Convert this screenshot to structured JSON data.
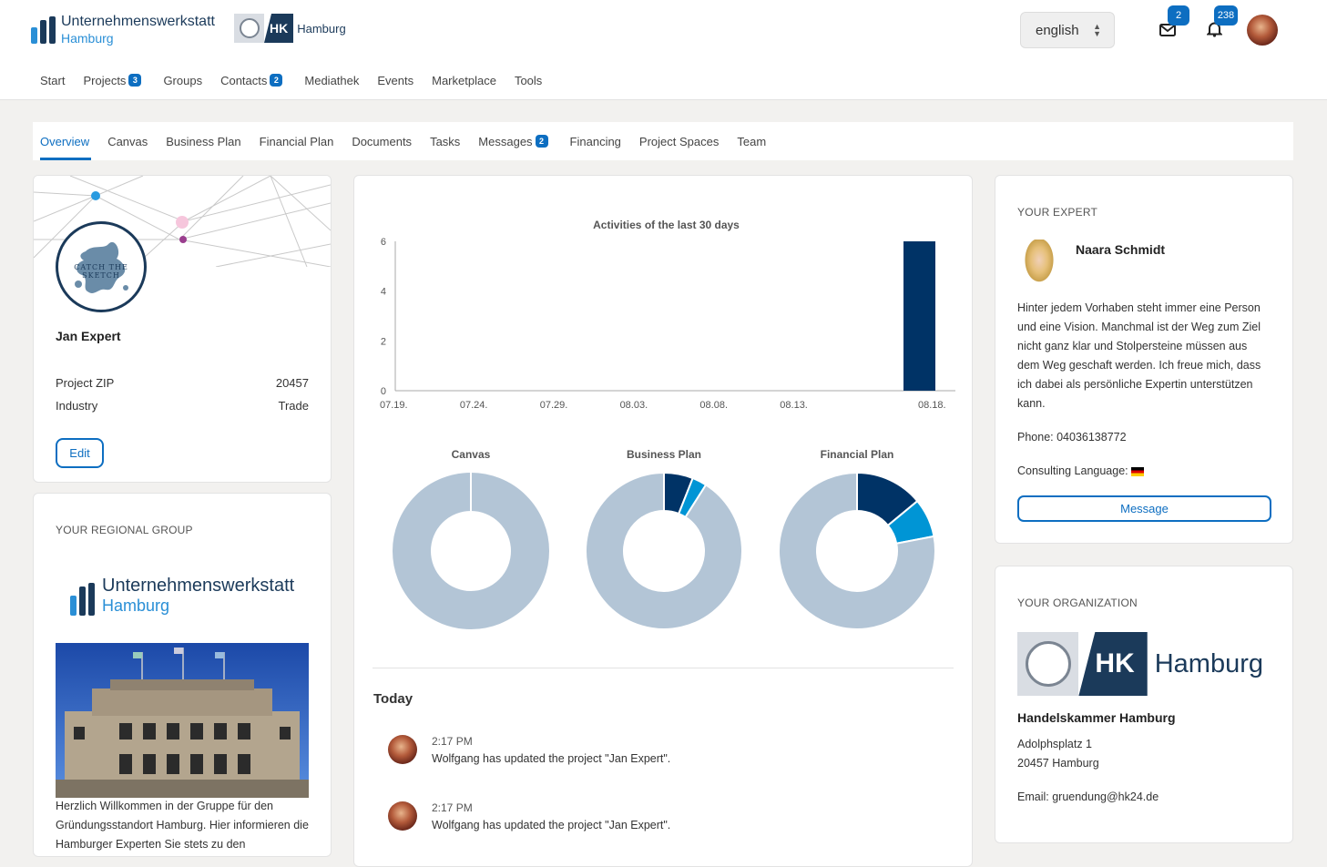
{
  "header": {
    "logo_line1": "Unternehmenswerkstatt",
    "logo_line2": "Hamburg",
    "hk_abbrev": "HK",
    "hk_word": "Hamburg",
    "language": "english",
    "mail_count": "2",
    "notification_count": "238"
  },
  "main_nav": [
    {
      "label": "Start",
      "count": ""
    },
    {
      "label": "Projects",
      "count": "3"
    },
    {
      "label": "Groups",
      "count": ""
    },
    {
      "label": "Contacts",
      "count": "2"
    },
    {
      "label": "Mediathek",
      "count": ""
    },
    {
      "label": "Events",
      "count": ""
    },
    {
      "label": "Marketplace",
      "count": ""
    },
    {
      "label": "Tools",
      "count": ""
    }
  ],
  "sub_nav": [
    {
      "label": "Overview",
      "count": "",
      "active": true
    },
    {
      "label": "Canvas",
      "count": ""
    },
    {
      "label": "Business Plan",
      "count": ""
    },
    {
      "label": "Financial Plan",
      "count": ""
    },
    {
      "label": "Documents",
      "count": ""
    },
    {
      "label": "Tasks",
      "count": ""
    },
    {
      "label": "Messages",
      "count": "2"
    },
    {
      "label": "Financing",
      "count": ""
    },
    {
      "label": "Project Spaces",
      "count": ""
    },
    {
      "label": "Team",
      "count": ""
    }
  ],
  "project": {
    "logo_text": "CATCH THE SKETCH",
    "name": "Jan Expert",
    "zip_label": "Project ZIP",
    "zip_value": "20457",
    "industry_label": "Industry",
    "industry_value": "Trade",
    "edit_label": "Edit"
  },
  "regional_group": {
    "title": "YOUR REGIONAL GROUP",
    "logo_line1": "Unternehmenswerkstatt",
    "logo_line2": "Hamburg",
    "text": "Herzlich Willkommen in der Gruppe für den Gründungsstandort Hamburg. Hier informieren die Hamburger Experten Sie stets zu den"
  },
  "chart_data": [
    {
      "type": "bar",
      "title": "Activities of the last 30 days",
      "categories": [
        "07.19.",
        "07.24.",
        "07.29.",
        "08.03.",
        "08.08.",
        "08.13.",
        "08.18."
      ],
      "values": [
        0,
        0,
        0,
        0,
        0,
        0,
        6
      ],
      "ylim": [
        0,
        6
      ],
      "yticks": [
        0,
        2,
        4,
        6
      ],
      "color": "#003366"
    },
    {
      "type": "pie",
      "title": "Canvas",
      "slices": [
        {
          "value": 0,
          "color": "#003366"
        },
        {
          "value": 0,
          "color": "#0095d5"
        },
        {
          "value": 100,
          "color": "#b3c5d6"
        }
      ]
    },
    {
      "type": "pie",
      "title": "Business Plan",
      "slices": [
        {
          "value": 6,
          "color": "#003366"
        },
        {
          "value": 3,
          "color": "#0095d5"
        },
        {
          "value": 91,
          "color": "#b3c5d6"
        }
      ]
    },
    {
      "type": "pie",
      "title": "Financial Plan",
      "slices": [
        {
          "value": 14,
          "color": "#003366"
        },
        {
          "value": 8,
          "color": "#0095d5"
        },
        {
          "value": 78,
          "color": "#b3c5d6"
        }
      ]
    }
  ],
  "feed": {
    "title": "Today",
    "items": [
      {
        "time": "2:17 PM",
        "text": "Wolfgang has updated the project \"Jan Expert\"."
      },
      {
        "time": "2:17 PM",
        "text": "Wolfgang has updated the project \"Jan Expert\"."
      }
    ]
  },
  "expert": {
    "title": "YOUR EXPERT",
    "name": "Naara Schmidt",
    "bio": "Hinter jedem Vorhaben steht immer eine Person und eine Vision. Manchmal ist der Weg zum Ziel nicht ganz klar und Stolpersteine müssen aus dem Weg geschaft werden. Ich freue mich, dass ich dabei als persönliche Expertin unterstützen kann.",
    "phone": "Phone: 04036138772",
    "consulting_language": "Consulting Language:",
    "message_label": "Message"
  },
  "organization": {
    "title": "YOUR ORGANIZATION",
    "logo_abbrev": "HK",
    "logo_word": "Hamburg",
    "name": "Handelskammer Hamburg",
    "street": "Adolphsplatz 1",
    "city": "20457 Hamburg",
    "email": "Email: gruendung@hk24.de"
  }
}
